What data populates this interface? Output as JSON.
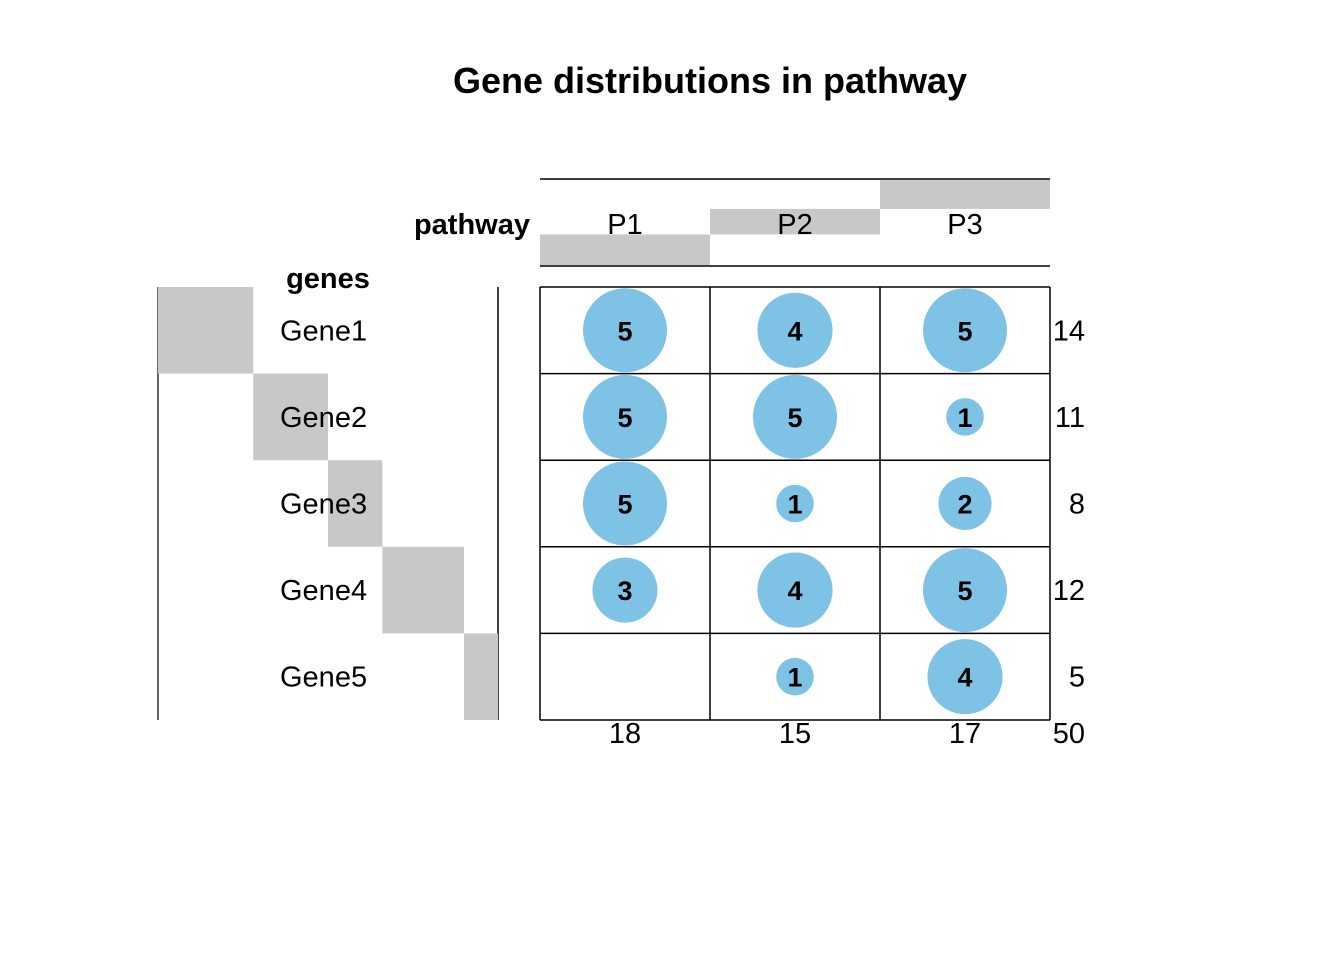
{
  "chart_data": {
    "type": "table",
    "title": "Gene distributions in pathway",
    "column_header_label": "pathway",
    "row_header_label": "genes",
    "columns": [
      "P1",
      "P2",
      "P3"
    ],
    "rows": [
      "Gene1",
      "Gene2",
      "Gene3",
      "Gene4",
      "Gene5"
    ],
    "values": [
      [
        5,
        4,
        5
      ],
      [
        5,
        5,
        1
      ],
      [
        5,
        1,
        2
      ],
      [
        3,
        4,
        5
      ],
      [
        null,
        1,
        4
      ]
    ],
    "row_totals": [
      14,
      11,
      8,
      12,
      5
    ],
    "column_totals": [
      18,
      15,
      17
    ],
    "grand_total": 50,
    "column_bar_values": [
      18,
      15,
      17
    ],
    "row_bar_values": [
      14,
      11,
      8,
      12,
      5
    ],
    "colors": {
      "bubble": "#7ec3e6",
      "bar": "#c8c8c8",
      "grid": "#000000"
    }
  }
}
